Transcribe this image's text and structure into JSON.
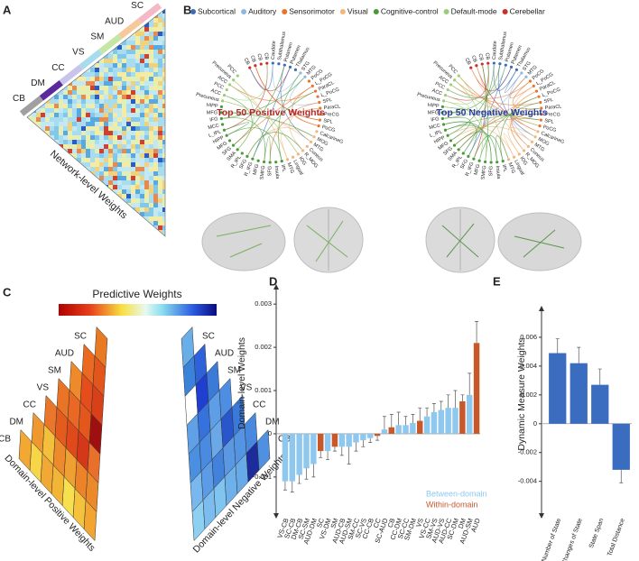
{
  "panel_labels": [
    "A",
    "B",
    "C",
    "D",
    "E"
  ],
  "panel_a": {
    "labels": [
      "SC",
      "AUD",
      "SM",
      "VS",
      "CC",
      "DM",
      "CB"
    ],
    "colors": [
      "#f4b8c6",
      "#f6c89a",
      "#c6e6a6",
      "#a8dcec",
      "#c8c4ec",
      "#5a2a9c",
      "#a0a0a0"
    ],
    "axis_label": "Network-level Weights"
  },
  "panel_b": {
    "groups": [
      {
        "name": "Subcortical",
        "color": "#3a6db5"
      },
      {
        "name": "Auditory",
        "color": "#8fb8e0"
      },
      {
        "name": "Sensorimotor",
        "color": "#e8742a"
      },
      {
        "name": "Visual",
        "color": "#f2b57a"
      },
      {
        "name": "Cognitive-control",
        "color": "#4a9a3a"
      },
      {
        "name": "Default-mode",
        "color": "#9ccc78"
      },
      {
        "name": "Cerebellar",
        "color": "#c8302a"
      }
    ],
    "titles": [
      "Top 50 Positive Weights",
      "Top 50 Negative Weights"
    ],
    "title_colors": [
      "#b0282a",
      "#2a3b9c"
    ],
    "regions": [
      {
        "label": "CB",
        "group": 6
      },
      {
        "label": "CB",
        "group": 6
      },
      {
        "label": "CB",
        "group": 6
      },
      {
        "label": "CB",
        "group": 6
      },
      {
        "label": "Caudate",
        "group": 0
      },
      {
        "label": "Subthalamus",
        "group": 0
      },
      {
        "label": "Putamen",
        "group": 0
      },
      {
        "label": "Putamen",
        "group": 0
      },
      {
        "label": "Thalamus",
        "group": 0
      },
      {
        "label": "STG",
        "group": 1
      },
      {
        "label": "MTG",
        "group": 1
      },
      {
        "label": "PoCG",
        "group": 2
      },
      {
        "label": "L_PoCG",
        "group": 2
      },
      {
        "label": "ParaCL",
        "group": 2
      },
      {
        "label": "L_PoCG",
        "group": 2
      },
      {
        "label": "SPL",
        "group": 2
      },
      {
        "label": "ParaCL",
        "group": 2
      },
      {
        "label": "PreCG",
        "group": 2
      },
      {
        "label": "SPL",
        "group": 2
      },
      {
        "label": "PoCG",
        "group": 2
      },
      {
        "label": "CalcarineG",
        "group": 3
      },
      {
        "label": "MOG",
        "group": 3
      },
      {
        "label": "MTG",
        "group": 3
      },
      {
        "label": "Cuneus",
        "group": 3
      },
      {
        "label": "R_MOG",
        "group": 3
      },
      {
        "label": "IOG",
        "group": 3
      },
      {
        "label": "Lingual",
        "group": 3
      },
      {
        "label": "MTG",
        "group": 3
      },
      {
        "label": "IPL",
        "group": 4
      },
      {
        "label": "Insula",
        "group": 4
      },
      {
        "label": "SFG",
        "group": 4
      },
      {
        "label": "SMFG",
        "group": 4
      },
      {
        "label": "MFG",
        "group": 4
      },
      {
        "label": "R_IFG",
        "group": 4
      },
      {
        "label": "SFG",
        "group": 4
      },
      {
        "label": "R_IPL",
        "group": 4
      },
      {
        "label": "SMA",
        "group": 4
      },
      {
        "label": "SFG",
        "group": 4
      },
      {
        "label": "MFG",
        "group": 4
      },
      {
        "label": "HIPP",
        "group": 4
      },
      {
        "label": "L_IPL",
        "group": 4
      },
      {
        "label": "MCC",
        "group": 4
      },
      {
        "label": "IFG",
        "group": 4
      },
      {
        "label": "MFG",
        "group": 4
      },
      {
        "label": "HIPP",
        "group": 4
      },
      {
        "label": "Precuneus",
        "group": 5
      },
      {
        "label": "ACC",
        "group": 5
      },
      {
        "label": "PCC",
        "group": 5
      },
      {
        "label": "ACC",
        "group": 5
      },
      {
        "label": "Precuneus",
        "group": 5
      },
      {
        "label": "PCC",
        "group": 5
      }
    ]
  },
  "panel_c": {
    "title": "Predictive Weights",
    "labels": [
      "SC",
      "AUD",
      "SM",
      "VS",
      "CC",
      "DM",
      "CB"
    ],
    "left_label": "Domain-level Positive Weights",
    "right_label": "Domain-level Negative Weights",
    "positive_colors": [
      "#e97a24",
      "#e2561c",
      "#d8401a",
      "#9e1010",
      "#e8702a",
      "#eb8a2a",
      "#f2a531",
      "#ea6a22",
      "#e54d1c",
      "#e3571c",
      "#d43818",
      "#ec8328",
      "#f4c23c",
      "#ee8a2a",
      "#e86824",
      "#e04a1a",
      "#f0a030",
      "#f6e050",
      "#ea7426",
      "#e35c1e",
      "#ec8a2c",
      "#f3b536",
      "#e9762a",
      "#f4c03c",
      "#f1a834",
      "#ef9830",
      "#f6d648",
      "#f2a832"
    ],
    "negative_colors": [
      "#6aaee8",
      "#3b82db",
      "#ffffff",
      "#5fa0e6",
      "#4a8fe0",
      "#78b8ee",
      "#8ed0f2",
      "#2f62d8",
      "#1f3fd0",
      "#3672dc",
      "#4a8ae0",
      "#5c9ce6",
      "#7cbcee",
      "#3c7ad8",
      "#5d9ee6",
      "#6aa8e8",
      "#4282dc",
      "#80c4f0",
      "#4d8ee2",
      "#2a56cc",
      "#5a98e4",
      "#6eb0ea",
      "#3a78da",
      "#5494e2",
      "#68aae8",
      "#4888de",
      "#1c2c9a",
      "#5090e0"
    ]
  },
  "chart_data": [
    {
      "type": "bar",
      "y_label": "Domain-level Weights",
      "categories": [
        "VS-CB",
        "SC-CB",
        "DM-CB",
        "SC-SM",
        "AUD-DM",
        "SC",
        "VS-DM",
        "SM",
        "AUD-CB",
        "AUD-SM",
        "SM-CC",
        "SC-VS",
        "CC-CB",
        "CC",
        "SC-AUD",
        "CB",
        "CC-DM",
        "SC-CC",
        "SM-DM",
        "VS",
        "VS-CC",
        "SM-VS",
        "AUD-VS",
        "AUD-CC",
        "SC-DM",
        "DM",
        "AUD-SM",
        "AUD"
      ],
      "series": [
        {
          "name": "Between-domain",
          "color": "#8ec8ee",
          "values": [
            -0.0011,
            -0.0011,
            -0.00095,
            -0.0008,
            -0.0007,
            null,
            -0.0004,
            null,
            -0.0003,
            -0.0003,
            -0.0002,
            -0.00015,
            -0.0001,
            null,
            0.0001,
            null,
            0.0002,
            0.0002,
            0.00025,
            null,
            0.0004,
            0.0005,
            0.00055,
            0.0006,
            0.0006,
            null,
            0.0009,
            null
          ],
          "errors": [
            0.0002,
            0.00025,
            0.0002,
            0.00025,
            0.0003,
            null,
            0.0002,
            null,
            0.0002,
            0.0004,
            0.0002,
            0.00015,
            0.0001,
            null,
            0.0003,
            null,
            0.0003,
            0.0002,
            0.0002,
            null,
            0.0002,
            0.0002,
            0.0002,
            0.0003,
            0.0004,
            null,
            0.0005,
            null
          ]
        },
        {
          "name": "Within-domain",
          "color": "#c8582a",
          "values": [
            null,
            null,
            null,
            null,
            null,
            -0.0004,
            null,
            -0.0003,
            null,
            null,
            null,
            null,
            null,
            -5e-05,
            null,
            0.00015,
            null,
            null,
            null,
            0.0003,
            null,
            null,
            null,
            null,
            null,
            0.00075,
            null,
            0.0021
          ],
          "errors": [
            null,
            null,
            null,
            null,
            null,
            0.00015,
            null,
            0.0001,
            null,
            null,
            null,
            null,
            null,
            0.0001,
            null,
            0.0003,
            null,
            null,
            null,
            0.0003,
            null,
            null,
            null,
            null,
            null,
            0.00015,
            null,
            0.0005
          ]
        }
      ],
      "ylim": [
        -0.0019,
        0.0034
      ],
      "yticks": [
        -0.001,
        0,
        0.001,
        0.002,
        0.003
      ]
    },
    {
      "type": "bar",
      "y_label": "Dynamic Measure Weights",
      "categories": [
        "Number of State",
        "Changes of State",
        "State Span",
        "Total Distance"
      ],
      "values": [
        0.0049,
        0.0042,
        0.0027,
        -0.0032
      ],
      "errors": [
        0.001,
        0.0011,
        0.0011,
        0.0009
      ],
      "color": "#3a6cc0",
      "ylim": [
        -0.0064,
        0.008
      ],
      "yticks": [
        -0.004,
        -0.002,
        0,
        0.002,
        0.004,
        0.006
      ]
    }
  ]
}
